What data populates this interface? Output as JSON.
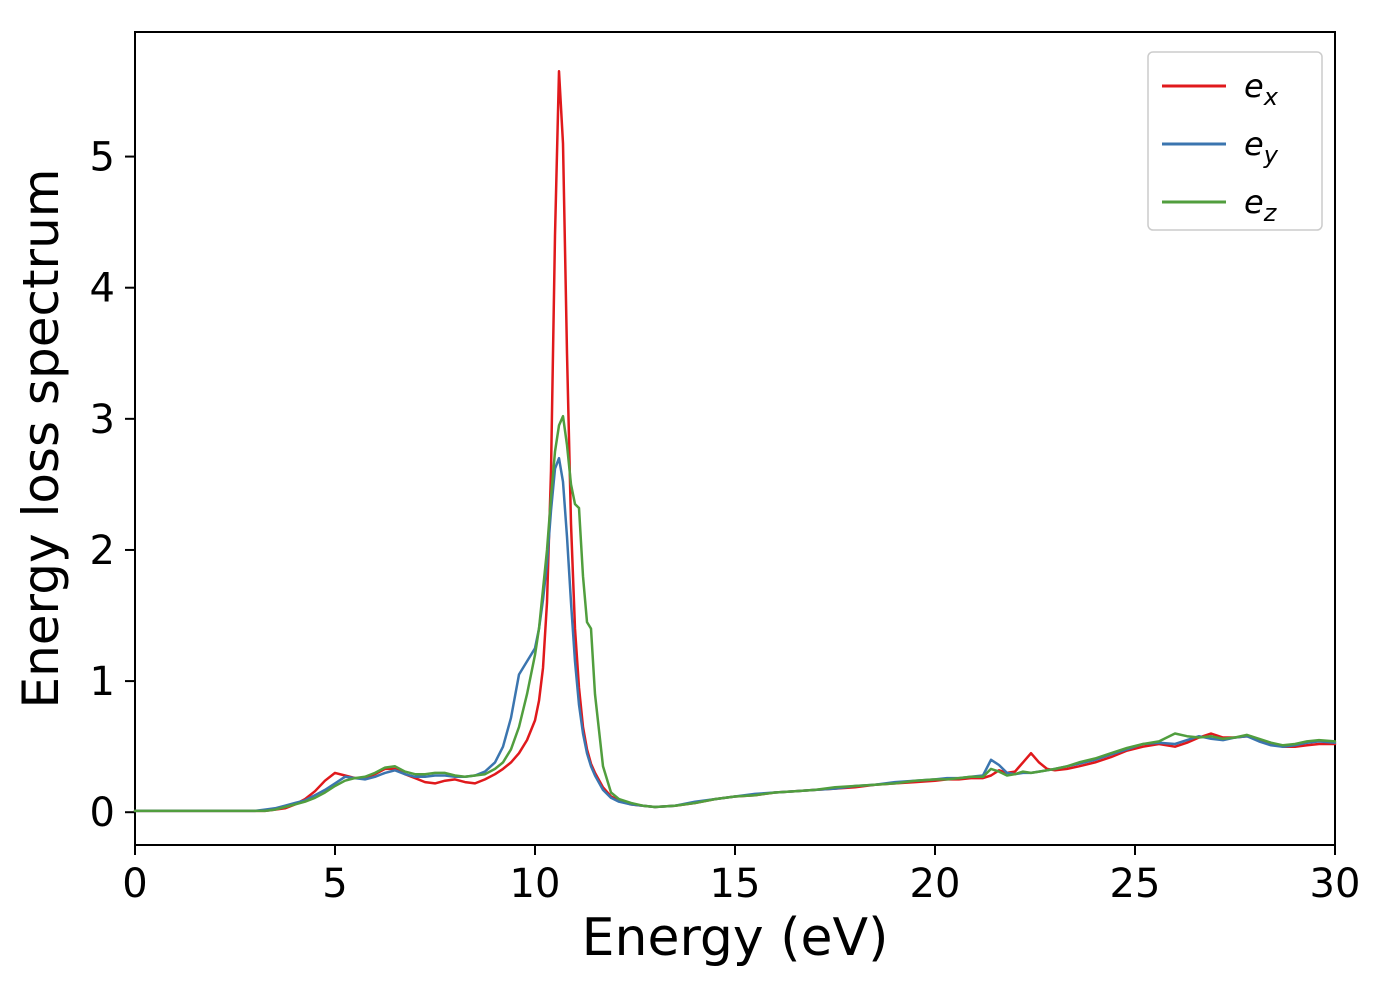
{
  "figure": {
    "background": "#ffffff",
    "axis_color": "#000000",
    "legend_border_color": "#cccccc"
  },
  "chart_data": {
    "type": "line",
    "title": "",
    "xlabel": "Energy (eV)",
    "ylabel": "Energy loss spectrum",
    "xlim": [
      0,
      30
    ],
    "ylim": [
      -0.25,
      5.95
    ],
    "xticks": [
      0,
      5,
      10,
      15,
      20,
      25,
      30
    ],
    "yticks": [
      0,
      1,
      2,
      3,
      4,
      5
    ],
    "grid": false,
    "legend_position": "upper right",
    "x": [
      0,
      0.5,
      1,
      1.5,
      2,
      2.5,
      3,
      3.25,
      3.5,
      3.75,
      4,
      4.25,
      4.5,
      4.75,
      5,
      5.25,
      5.5,
      5.75,
      6,
      6.25,
      6.5,
      6.75,
      7,
      7.25,
      7.5,
      7.75,
      8,
      8.25,
      8.5,
      8.75,
      9,
      9.2,
      9.4,
      9.6,
      9.8,
      10,
      10.1,
      10.2,
      10.3,
      10.4,
      10.5,
      10.6,
      10.7,
      10.8,
      10.9,
      11,
      11.1,
      11.2,
      11.3,
      11.4,
      11.5,
      11.7,
      11.9,
      12.1,
      12.4,
      12.7,
      13,
      13.5,
      14,
      14.5,
      15,
      15.5,
      16,
      16.5,
      17,
      17.5,
      18,
      18.5,
      19,
      19.5,
      20,
      20.3,
      20.6,
      20.9,
      21.2,
      21.4,
      21.6,
      21.8,
      22,
      22.2,
      22.4,
      22.6,
      22.8,
      23,
      23.3,
      23.6,
      24,
      24.4,
      24.8,
      25.2,
      25.6,
      26,
      26.3,
      26.6,
      26.9,
      27.2,
      27.5,
      27.8,
      28.1,
      28.4,
      28.7,
      29,
      29.3,
      29.6,
      30
    ],
    "series": [
      {
        "name": "e_x",
        "label_base": "e",
        "label_sub": "x",
        "color": "#e0191c",
        "values": [
          0.01,
          0.01,
          0.01,
          0.01,
          0.01,
          0.01,
          0.01,
          0.01,
          0.02,
          0.03,
          0.06,
          0.1,
          0.16,
          0.24,
          0.3,
          0.28,
          0.26,
          0.26,
          0.29,
          0.33,
          0.33,
          0.29,
          0.26,
          0.23,
          0.22,
          0.24,
          0.25,
          0.23,
          0.22,
          0.25,
          0.29,
          0.33,
          0.38,
          0.45,
          0.55,
          0.7,
          0.85,
          1.1,
          1.6,
          2.6,
          4.4,
          5.65,
          5.1,
          3.5,
          2.2,
          1.4,
          0.95,
          0.65,
          0.48,
          0.37,
          0.3,
          0.19,
          0.12,
          0.09,
          0.06,
          0.05,
          0.04,
          0.05,
          0.07,
          0.1,
          0.12,
          0.13,
          0.15,
          0.16,
          0.17,
          0.18,
          0.19,
          0.21,
          0.22,
          0.23,
          0.24,
          0.25,
          0.25,
          0.26,
          0.26,
          0.28,
          0.32,
          0.3,
          0.31,
          0.38,
          0.45,
          0.38,
          0.33,
          0.32,
          0.33,
          0.35,
          0.38,
          0.42,
          0.47,
          0.5,
          0.52,
          0.5,
          0.53,
          0.57,
          0.6,
          0.57,
          0.57,
          0.58,
          0.55,
          0.52,
          0.5,
          0.5,
          0.51,
          0.52,
          0.52
        ]
      },
      {
        "name": "e_y",
        "label_base": "e",
        "label_sub": "y",
        "color": "#3b75af",
        "values": [
          0.01,
          0.01,
          0.01,
          0.01,
          0.01,
          0.01,
          0.01,
          0.02,
          0.03,
          0.05,
          0.07,
          0.09,
          0.13,
          0.17,
          0.22,
          0.27,
          0.26,
          0.25,
          0.27,
          0.3,
          0.32,
          0.29,
          0.27,
          0.27,
          0.28,
          0.28,
          0.27,
          0.27,
          0.28,
          0.31,
          0.38,
          0.5,
          0.72,
          1.05,
          1.15,
          1.25,
          1.4,
          1.62,
          1.9,
          2.3,
          2.62,
          2.7,
          2.52,
          2.1,
          1.6,
          1.15,
          0.82,
          0.6,
          0.45,
          0.35,
          0.28,
          0.17,
          0.11,
          0.08,
          0.06,
          0.05,
          0.04,
          0.05,
          0.08,
          0.1,
          0.12,
          0.14,
          0.15,
          0.16,
          0.17,
          0.18,
          0.2,
          0.21,
          0.23,
          0.24,
          0.25,
          0.26,
          0.26,
          0.27,
          0.28,
          0.4,
          0.36,
          0.3,
          0.29,
          0.3,
          0.3,
          0.31,
          0.32,
          0.33,
          0.35,
          0.37,
          0.4,
          0.44,
          0.48,
          0.52,
          0.53,
          0.52,
          0.55,
          0.58,
          0.56,
          0.55,
          0.57,
          0.58,
          0.54,
          0.51,
          0.5,
          0.51,
          0.53,
          0.54,
          0.53
        ]
      },
      {
        "name": "e_z",
        "label_base": "e",
        "label_sub": "z",
        "color": "#519e3e",
        "values": [
          0.01,
          0.01,
          0.01,
          0.01,
          0.01,
          0.01,
          0.01,
          0.01,
          0.02,
          0.04,
          0.06,
          0.08,
          0.11,
          0.15,
          0.2,
          0.24,
          0.26,
          0.27,
          0.3,
          0.34,
          0.35,
          0.31,
          0.29,
          0.29,
          0.3,
          0.3,
          0.28,
          0.27,
          0.28,
          0.29,
          0.33,
          0.38,
          0.48,
          0.65,
          0.9,
          1.2,
          1.4,
          1.7,
          2.0,
          2.4,
          2.75,
          2.95,
          3.02,
          2.8,
          2.5,
          2.35,
          2.32,
          1.8,
          1.45,
          1.4,
          0.9,
          0.35,
          0.15,
          0.1,
          0.07,
          0.05,
          0.04,
          0.05,
          0.07,
          0.1,
          0.12,
          0.13,
          0.15,
          0.16,
          0.17,
          0.19,
          0.2,
          0.21,
          0.22,
          0.24,
          0.25,
          0.25,
          0.26,
          0.27,
          0.27,
          0.33,
          0.31,
          0.28,
          0.29,
          0.31,
          0.3,
          0.31,
          0.32,
          0.33,
          0.35,
          0.38,
          0.41,
          0.45,
          0.49,
          0.52,
          0.54,
          0.6,
          0.58,
          0.57,
          0.58,
          0.56,
          0.57,
          0.59,
          0.56,
          0.53,
          0.51,
          0.52,
          0.54,
          0.55,
          0.54
        ]
      }
    ]
  }
}
